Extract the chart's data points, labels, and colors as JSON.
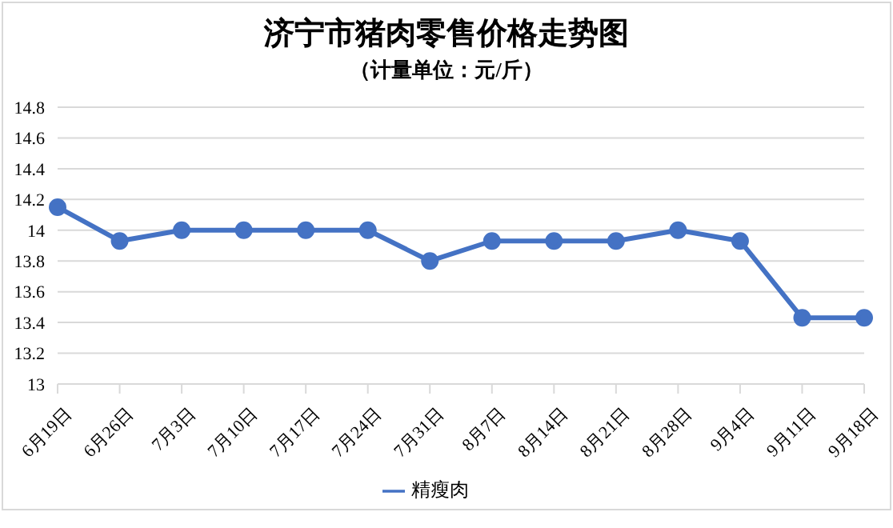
{
  "chart_data": {
    "type": "line",
    "title": "济宁市猪肉零售价格走势图",
    "subtitle": "（计量单位：元/斤）",
    "categories": [
      "6月19日",
      "6月26日",
      "7月3日",
      "7月10日",
      "7月17日",
      "7月24日",
      "7月31日",
      "8月7日",
      "8月14日",
      "8月21日",
      "8月28日",
      "9月4日",
      "9月11日",
      "9月18日"
    ],
    "series": [
      {
        "name": "精瘦肉",
        "color": "#4472c4",
        "values": [
          14.15,
          13.93,
          14,
          14,
          14,
          14,
          13.8,
          13.93,
          13.93,
          13.93,
          14,
          13.93,
          13.43,
          13.43
        ]
      }
    ],
    "ylim": [
      13,
      14.8
    ],
    "yticks": [
      13,
      13.2,
      13.4,
      13.6,
      13.8,
      14,
      14.2,
      14.4,
      14.6,
      14.8
    ],
    "grid": "y",
    "legend": "bottom",
    "marker": "circle",
    "line_style": "solid"
  }
}
